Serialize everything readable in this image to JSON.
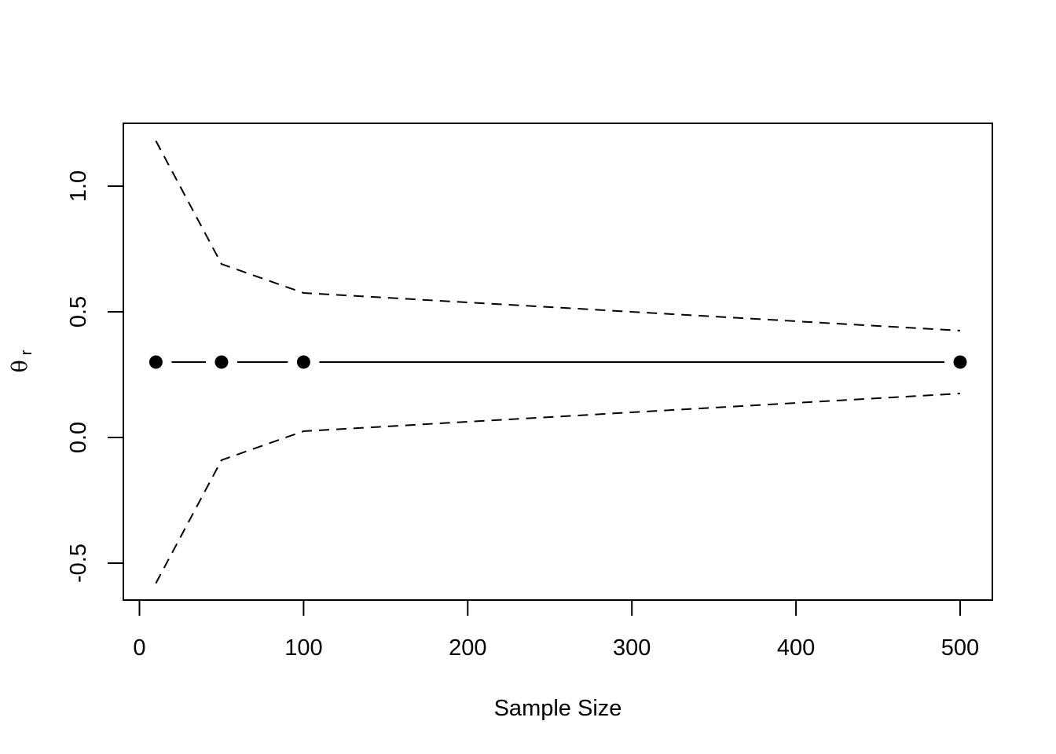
{
  "chart_data": {
    "type": "line",
    "title": "",
    "xlabel": "Sample Size",
    "ylabel": {
      "main": "θ",
      "subscript": "r"
    },
    "xlim": [
      0,
      500
    ],
    "ylim": [
      -0.6,
      1.25
    ],
    "xticks": [
      0,
      100,
      200,
      300,
      400,
      500
    ],
    "xtick_labels": [
      "0",
      "100",
      "200",
      "300",
      "400",
      "500"
    ],
    "yticks": [
      -0.5,
      0.0,
      0.5,
      1.0
    ],
    "ytick_labels": [
      "-0.5",
      "0.0",
      "0.5",
      "1.0"
    ],
    "grid": false,
    "legend": "none",
    "x": [
      10,
      50,
      100,
      500
    ],
    "series": [
      {
        "role": "estimate",
        "style": "points-and-line",
        "values": [
          0.3,
          0.3,
          0.3,
          0.3
        ]
      },
      {
        "role": "upper-bound",
        "style": "dashed",
        "values": [
          1.18,
          0.69,
          0.575,
          0.425
        ]
      },
      {
        "role": "lower-bound",
        "style": "dashed",
        "values": [
          -0.58,
          -0.09,
          0.025,
          0.175
        ]
      }
    ],
    "colors": {
      "ink": "#000000",
      "background": "#ffffff"
    }
  }
}
